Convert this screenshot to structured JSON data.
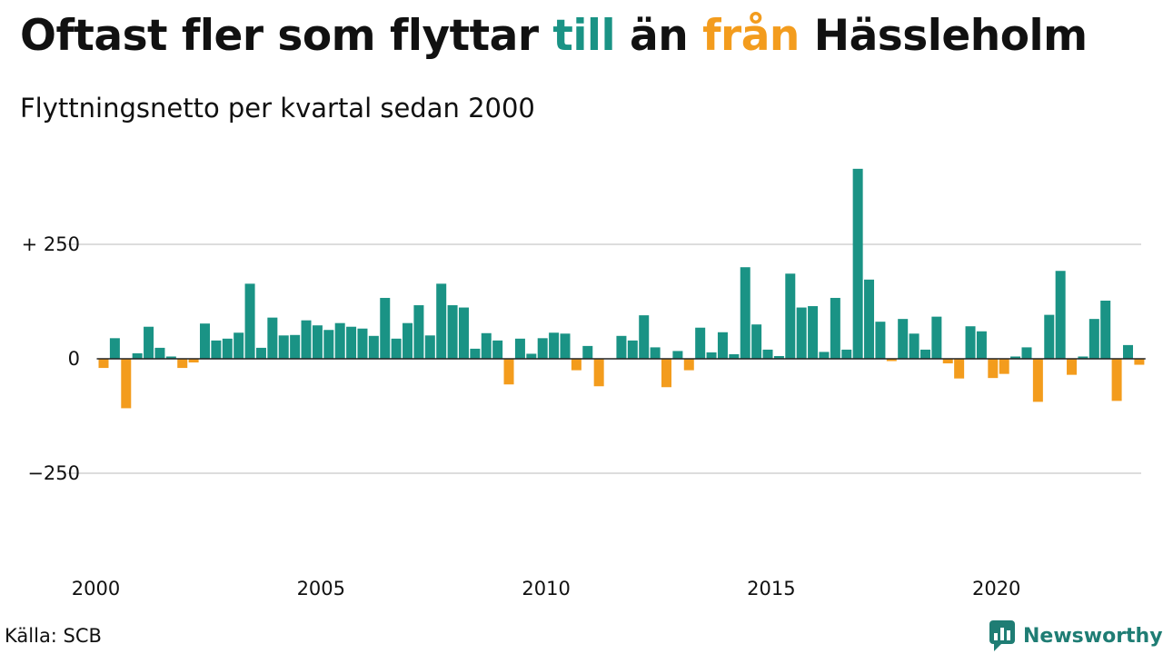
{
  "title": {
    "part1": "Oftast fler som flyttar ",
    "in_word": "till",
    "part2": " än ",
    "out_word": "från",
    "part3": " Hässleholm"
  },
  "subtitle": "Flyttningsnetto per kvartal sedan 2000",
  "source": "Källa: SCB",
  "brand": {
    "name": "Newsworthy",
    "icon": "newsworthy-logo-icon"
  },
  "colors": {
    "positive": "#1a9385",
    "negative": "#f39c1d",
    "grid": "#dddddd",
    "zero_line": "#222222"
  },
  "chart_data": {
    "type": "bar",
    "title": "Oftast fler som flyttar till än från Hässleholm",
    "subtitle": "Flyttningsnetto per kvartal sedan 2000",
    "x_start": "2000-Q1",
    "x_ticks": [
      "2000",
      "2005",
      "2010",
      "2015",
      "2020"
    ],
    "y_ticks": [
      {
        "value": 250,
        "label": "+ 250"
      },
      {
        "value": 0,
        "label": "0"
      },
      {
        "value": -250,
        "label": "−250"
      }
    ],
    "ylim": [
      -420,
      420
    ],
    "grid": true,
    "values": [
      -20,
      45,
      -108,
      12,
      70,
      24,
      5,
      -20,
      -8,
      77,
      40,
      44,
      57,
      164,
      24,
      90,
      51,
      52,
      84,
      73,
      63,
      78,
      70,
      66,
      50,
      133,
      44,
      78,
      117,
      51,
      164,
      117,
      112,
      22,
      56,
      40,
      -56,
      44,
      11,
      45,
      57,
      55,
      -25,
      28,
      -60,
      0,
      50,
      40,
      95,
      25,
      -62,
      17,
      -25,
      68,
      14,
      58,
      10,
      200,
      75,
      20,
      6,
      186,
      112,
      115,
      15,
      133,
      20,
      415,
      173,
      81,
      -5,
      87,
      55,
      20,
      92,
      -10,
      -43,
      71,
      60,
      -42,
      -33,
      5,
      25,
      -94,
      96,
      192,
      -35,
      5,
      87,
      127,
      -92,
      30,
      -13
    ]
  }
}
